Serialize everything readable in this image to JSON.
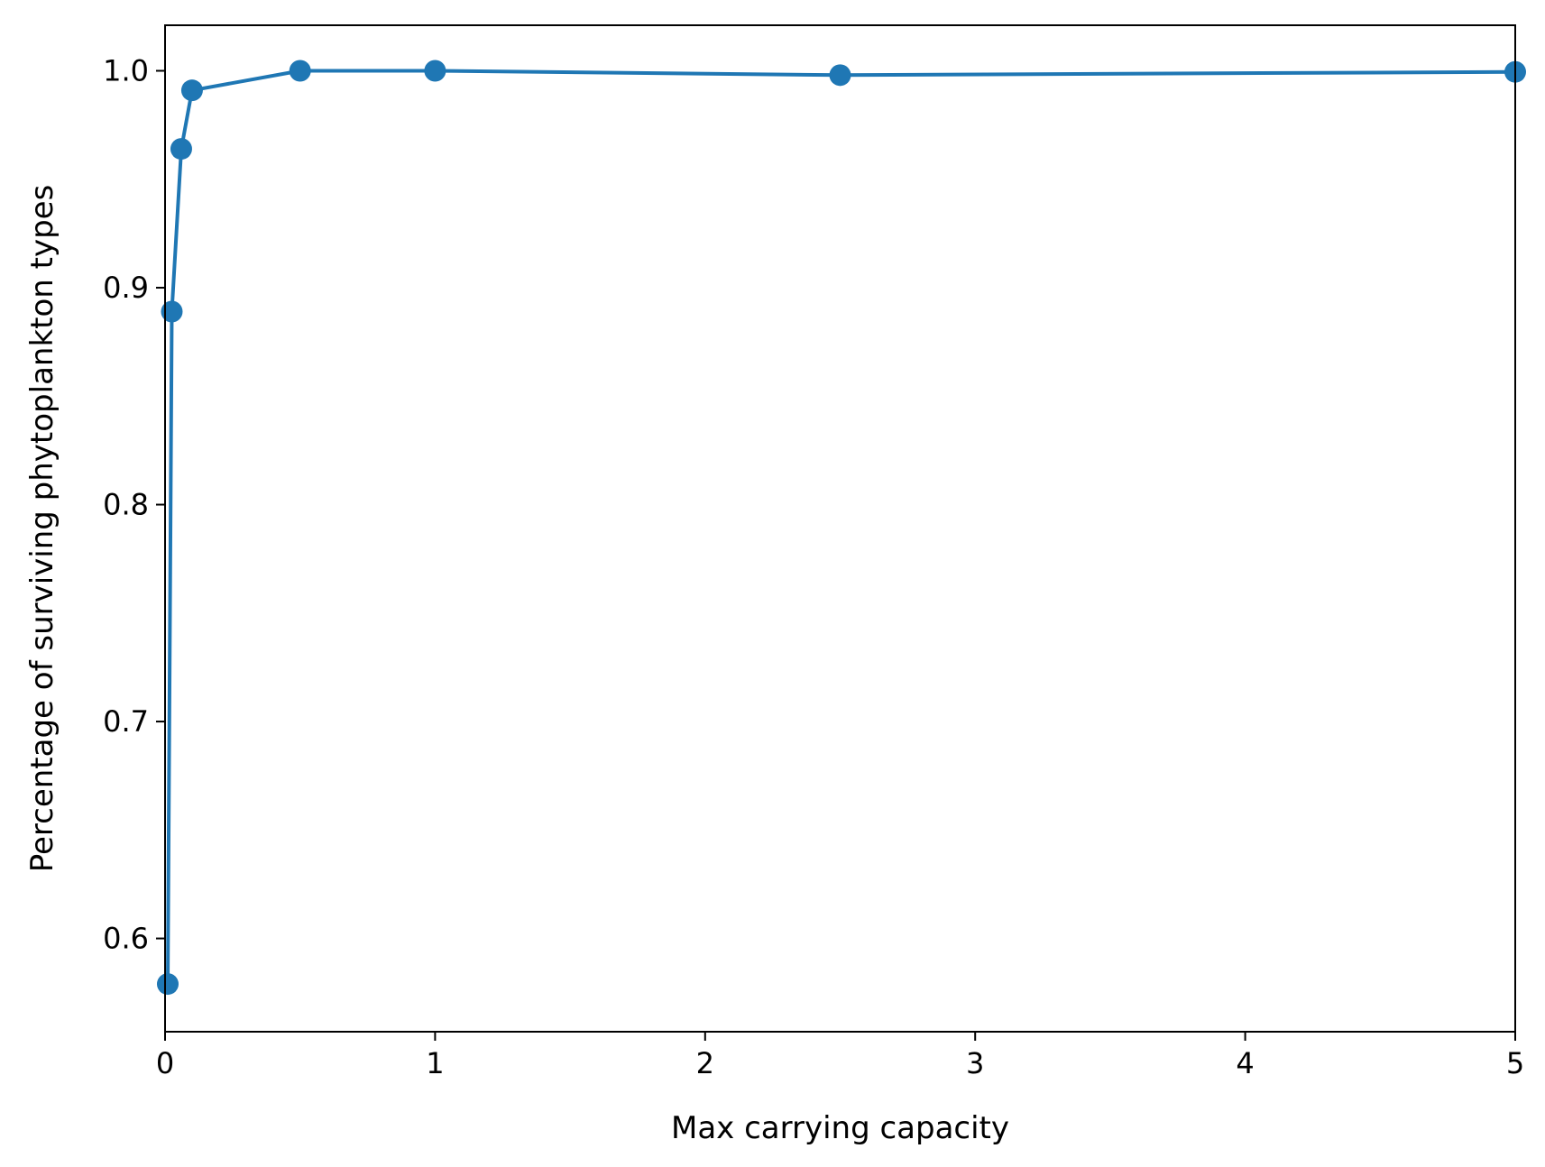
{
  "chart_data": {
    "type": "line",
    "title": "",
    "xlabel": "Max carrying capacity",
    "ylabel": "Percentage of surviving phytoplankton types",
    "xlim": [
      0,
      5
    ],
    "ylim": [
      0.557,
      1.021
    ],
    "xticks": [
      0,
      1,
      2,
      3,
      4,
      5
    ],
    "xtick_labels": [
      "0",
      "1",
      "2",
      "3",
      "4",
      "5"
    ],
    "yticks": [
      0.6,
      0.7,
      0.8,
      0.9,
      1.0
    ],
    "ytick_labels": [
      "0.6",
      "0.7",
      "0.8",
      "0.9",
      "1.0"
    ],
    "grid": false,
    "legend": "none",
    "series": [
      {
        "color": "#1f77b4",
        "marker": "circle",
        "x": [
          0.01,
          0.025,
          0.06,
          0.1,
          0.5,
          1.0,
          2.5,
          5.0
        ],
        "y": [
          0.579,
          0.889,
          0.964,
          0.991,
          1.0,
          1.0,
          0.998,
          0.9995
        ]
      }
    ]
  }
}
